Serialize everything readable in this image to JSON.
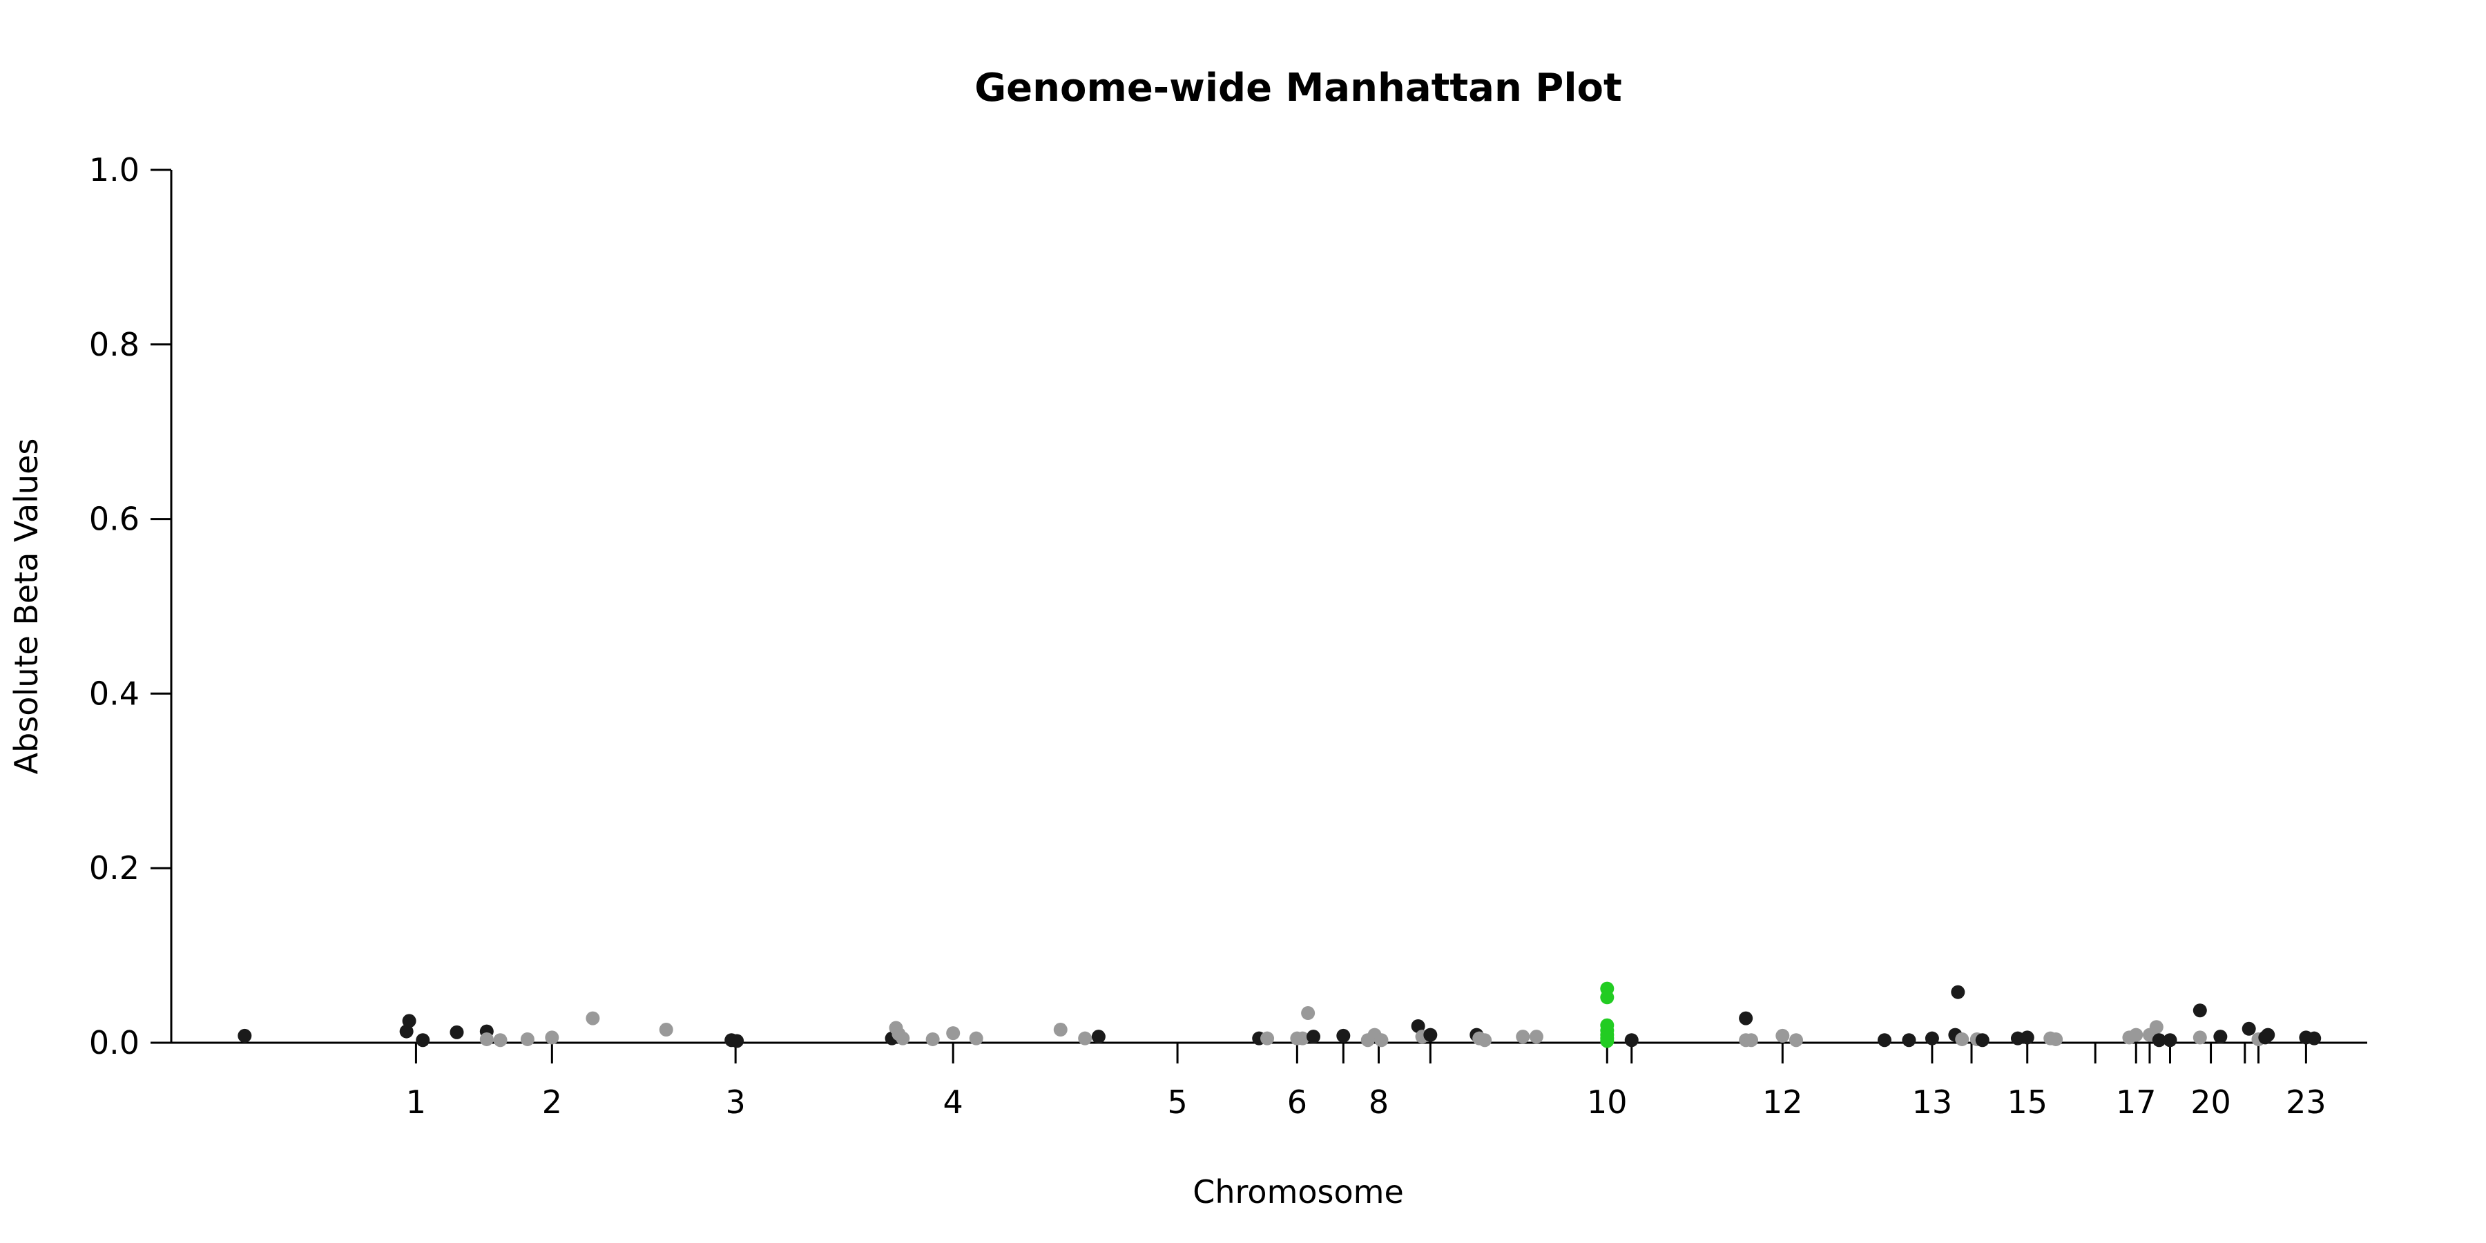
{
  "chart_data": {
    "type": "scatter",
    "title": "Genome-wide Manhattan Plot",
    "xlabel": "Chromosome",
    "ylabel": "Absolute Beta Values",
    "ylim": [
      0,
      1
    ],
    "y_ticks": [
      "0.0",
      "0.2",
      "0.4",
      "0.6",
      "0.8",
      "1.0"
    ],
    "grid": false,
    "legend": "none",
    "colors": {
      "dark": "#1a1a1a",
      "light": "#999999",
      "highlight": "#22cc22",
      "axis": "#000000"
    },
    "chromosome_ticks": [
      {
        "label": "1",
        "pos": 1.0
      },
      {
        "label": "2",
        "pos": 2.0
      },
      {
        "label": "3",
        "pos": 3.35
      },
      {
        "label": "4",
        "pos": 4.95
      },
      {
        "label": "5",
        "pos": 6.6
      },
      {
        "label": "6",
        "pos": 7.48
      },
      {
        "label": "",
        "pos": 7.82
      },
      {
        "label": "8",
        "pos": 8.08
      },
      {
        "label": "",
        "pos": 8.46
      },
      {
        "label": "10",
        "pos": 9.76
      },
      {
        "label": "",
        "pos": 9.94
      },
      {
        "label": "12",
        "pos": 11.05
      },
      {
        "label": "13",
        "pos": 12.15
      },
      {
        "label": "",
        "pos": 12.44
      },
      {
        "label": "15",
        "pos": 12.85
      },
      {
        "label": "",
        "pos": 13.35
      },
      {
        "label": "17",
        "pos": 13.65
      },
      {
        "label": "",
        "pos": 13.75
      },
      {
        "label": "",
        "pos": 13.9
      },
      {
        "label": "20",
        "pos": 14.2
      },
      {
        "label": "",
        "pos": 14.45
      },
      {
        "label": "",
        "pos": 14.55
      },
      {
        "label": "23",
        "pos": 14.9
      }
    ],
    "x_range": [
      -0.8,
      15.35
    ],
    "points": [
      {
        "x": -0.26,
        "y": 0.008,
        "c": "dark"
      },
      {
        "x": 0.93,
        "y": 0.013,
        "c": "dark"
      },
      {
        "x": 0.95,
        "y": 0.025,
        "c": "dark"
      },
      {
        "x": 1.05,
        "y": 0.003,
        "c": "dark"
      },
      {
        "x": 1.3,
        "y": 0.012,
        "c": "dark"
      },
      {
        "x": 1.52,
        "y": 0.013,
        "c": "dark"
      },
      {
        "x": 1.52,
        "y": 0.004,
        "c": "light"
      },
      {
        "x": 1.62,
        "y": 0.003,
        "c": "light"
      },
      {
        "x": 1.82,
        "y": 0.004,
        "c": "light"
      },
      {
        "x": 2.0,
        "y": 0.006,
        "c": "light"
      },
      {
        "x": 2.3,
        "y": 0.028,
        "c": "light"
      },
      {
        "x": 2.84,
        "y": 0.015,
        "c": "light"
      },
      {
        "x": 3.32,
        "y": 0.003,
        "c": "dark"
      },
      {
        "x": 3.36,
        "y": 0.002,
        "c": "dark"
      },
      {
        "x": 4.5,
        "y": 0.005,
        "c": "dark"
      },
      {
        "x": 4.53,
        "y": 0.017,
        "c": "light"
      },
      {
        "x": 4.55,
        "y": 0.01,
        "c": "light"
      },
      {
        "x": 4.58,
        "y": 0.005,
        "c": "light"
      },
      {
        "x": 4.8,
        "y": 0.004,
        "c": "light"
      },
      {
        "x": 4.95,
        "y": 0.011,
        "c": "light"
      },
      {
        "x": 5.12,
        "y": 0.005,
        "c": "light"
      },
      {
        "x": 5.74,
        "y": 0.015,
        "c": "light"
      },
      {
        "x": 5.92,
        "y": 0.005,
        "c": "light"
      },
      {
        "x": 6.02,
        "y": 0.007,
        "c": "dark"
      },
      {
        "x": 7.2,
        "y": 0.005,
        "c": "dark"
      },
      {
        "x": 7.26,
        "y": 0.005,
        "c": "light"
      },
      {
        "x": 7.48,
        "y": 0.005,
        "c": "light"
      },
      {
        "x": 7.52,
        "y": 0.005,
        "c": "light"
      },
      {
        "x": 7.56,
        "y": 0.034,
        "c": "light"
      },
      {
        "x": 7.6,
        "y": 0.007,
        "c": "dark"
      },
      {
        "x": 7.82,
        "y": 0.008,
        "c": "dark"
      },
      {
        "x": 8.0,
        "y": 0.003,
        "c": "light"
      },
      {
        "x": 8.05,
        "y": 0.009,
        "c": "light"
      },
      {
        "x": 8.1,
        "y": 0.003,
        "c": "light"
      },
      {
        "x": 8.37,
        "y": 0.019,
        "c": "dark"
      },
      {
        "x": 8.4,
        "y": 0.007,
        "c": "light"
      },
      {
        "x": 8.46,
        "y": 0.009,
        "c": "dark"
      },
      {
        "x": 8.8,
        "y": 0.009,
        "c": "dark"
      },
      {
        "x": 8.82,
        "y": 0.005,
        "c": "light"
      },
      {
        "x": 8.86,
        "y": 0.003,
        "c": "light"
      },
      {
        "x": 9.14,
        "y": 0.007,
        "c": "light"
      },
      {
        "x": 9.24,
        "y": 0.007,
        "c": "light"
      },
      {
        "x": 9.76,
        "y": 0.062,
        "c": "highlight"
      },
      {
        "x": 9.76,
        "y": 0.052,
        "c": "highlight"
      },
      {
        "x": 9.76,
        "y": 0.02,
        "c": "highlight"
      },
      {
        "x": 9.76,
        "y": 0.014,
        "c": "highlight"
      },
      {
        "x": 9.76,
        "y": 0.009,
        "c": "highlight"
      },
      {
        "x": 9.76,
        "y": 0.005,
        "c": "highlight"
      },
      {
        "x": 9.76,
        "y": 0.002,
        "c": "highlight"
      },
      {
        "x": 9.94,
        "y": 0.003,
        "c": "dark"
      },
      {
        "x": 10.78,
        "y": 0.028,
        "c": "dark"
      },
      {
        "x": 10.78,
        "y": 0.003,
        "c": "light"
      },
      {
        "x": 10.82,
        "y": 0.003,
        "c": "light"
      },
      {
        "x": 11.05,
        "y": 0.008,
        "c": "light"
      },
      {
        "x": 11.15,
        "y": 0.003,
        "c": "light"
      },
      {
        "x": 11.8,
        "y": 0.003,
        "c": "dark"
      },
      {
        "x": 11.98,
        "y": 0.003,
        "c": "dark"
      },
      {
        "x": 12.15,
        "y": 0.005,
        "c": "dark"
      },
      {
        "x": 12.32,
        "y": 0.009,
        "c": "dark"
      },
      {
        "x": 12.34,
        "y": 0.058,
        "c": "dark"
      },
      {
        "x": 12.37,
        "y": 0.004,
        "c": "light"
      },
      {
        "x": 12.48,
        "y": 0.004,
        "c": "light"
      },
      {
        "x": 12.52,
        "y": 0.003,
        "c": "dark"
      },
      {
        "x": 12.78,
        "y": 0.005,
        "c": "dark"
      },
      {
        "x": 12.85,
        "y": 0.006,
        "c": "dark"
      },
      {
        "x": 13.02,
        "y": 0.005,
        "c": "light"
      },
      {
        "x": 13.06,
        "y": 0.004,
        "c": "light"
      },
      {
        "x": 13.6,
        "y": 0.006,
        "c": "light"
      },
      {
        "x": 13.65,
        "y": 0.009,
        "c": "light"
      },
      {
        "x": 13.75,
        "y": 0.009,
        "c": "light"
      },
      {
        "x": 13.8,
        "y": 0.018,
        "c": "light"
      },
      {
        "x": 13.82,
        "y": 0.003,
        "c": "dark"
      },
      {
        "x": 13.9,
        "y": 0.003,
        "c": "dark"
      },
      {
        "x": 14.12,
        "y": 0.037,
        "c": "dark"
      },
      {
        "x": 14.12,
        "y": 0.006,
        "c": "light"
      },
      {
        "x": 14.27,
        "y": 0.007,
        "c": "dark"
      },
      {
        "x": 14.48,
        "y": 0.016,
        "c": "dark"
      },
      {
        "x": 14.55,
        "y": 0.004,
        "c": "light"
      },
      {
        "x": 14.6,
        "y": 0.006,
        "c": "dark"
      },
      {
        "x": 14.62,
        "y": 0.009,
        "c": "dark"
      },
      {
        "x": 14.9,
        "y": 0.006,
        "c": "dark"
      },
      {
        "x": 14.96,
        "y": 0.005,
        "c": "dark"
      }
    ]
  }
}
